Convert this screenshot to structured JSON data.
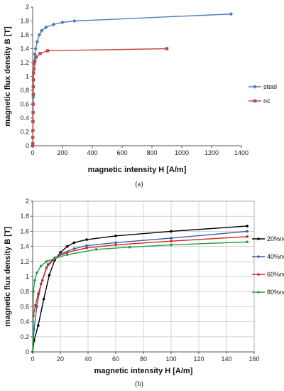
{
  "chart_data": [
    {
      "type": "line",
      "panel_label": "(a)",
      "xlabel": "magnetic intensity H [A/m]",
      "ylabel": "magnetic flux density B [T]",
      "xlim": [
        0,
        1400
      ],
      "ylim": [
        0,
        2
      ],
      "xticks": [
        0,
        200,
        400,
        600,
        800,
        1000,
        1200,
        1400
      ],
      "yticks": [
        0,
        0.2,
        0.4,
        0.6,
        0.8,
        1,
        1.2,
        1.4,
        1.6,
        1.8,
        2
      ],
      "grid": false,
      "legend_position": "right",
      "series": [
        {
          "name": "steel",
          "color": "#4a7ebb",
          "marker": "diamond",
          "x": [
            0,
            2,
            4,
            6,
            8,
            10,
            15,
            20,
            30,
            45,
            60,
            90,
            140,
            200,
            280,
            1330
          ],
          "y": [
            0,
            0.35,
            0.7,
            0.95,
            1.1,
            1.2,
            1.32,
            1.4,
            1.5,
            1.6,
            1.66,
            1.71,
            1.75,
            1.78,
            1.8,
            1.9
          ]
        },
        {
          "name": "nc",
          "color": "#be4b48",
          "marker": "square",
          "x": [
            0,
            1,
            1,
            2,
            2,
            3,
            3,
            4,
            4,
            5,
            6,
            8,
            10,
            15,
            25,
            50,
            100,
            900
          ],
          "y": [
            0,
            0.03,
            0.12,
            0.22,
            0.35,
            0.48,
            0.6,
            0.74,
            0.85,
            0.95,
            1.05,
            1.12,
            1.18,
            1.22,
            1.28,
            1.33,
            1.37,
            1.4
          ]
        }
      ]
    },
    {
      "type": "line",
      "panel_label": "(b)",
      "xlabel": "magnetic intensity H [A/m]",
      "ylabel": "magnetic flux density B [T]",
      "xlim": [
        0,
        160
      ],
      "ylim": [
        0,
        2
      ],
      "xticks": [
        0,
        20,
        40,
        60,
        80,
        100,
        120,
        140,
        160
      ],
      "yticks": [
        0,
        0.2,
        0.4,
        0.6,
        0.8,
        1,
        1.2,
        1.4,
        1.6,
        1.8,
        2
      ],
      "grid": true,
      "legend_position": "right",
      "series": [
        {
          "name": "20%nc",
          "color": "#000000",
          "x": [
            0,
            1,
            4,
            8,
            12,
            16,
            20,
            25,
            30,
            39,
            60,
            100,
            155
          ],
          "y": [
            0,
            0.15,
            0.35,
            0.7,
            1.02,
            1.22,
            1.32,
            1.4,
            1.45,
            1.49,
            1.54,
            1.6,
            1.67
          ]
        },
        {
          "name": "40%nc",
          "color": "#3a5fa8",
          "x": [
            0,
            1,
            3,
            6,
            10,
            15,
            20,
            30,
            39,
            60,
            100,
            155
          ],
          "y": [
            0,
            0.3,
            0.6,
            0.9,
            1.12,
            1.22,
            1.3,
            1.37,
            1.41,
            1.45,
            1.51,
            1.6
          ]
        },
        {
          "name": "60%nc",
          "color": "#e02020",
          "x": [
            0,
            0.5,
            2,
            4,
            7,
            11,
            16,
            25,
            39,
            60,
            100,
            155
          ],
          "y": [
            0,
            0.48,
            0.62,
            0.77,
            0.95,
            1.16,
            1.25,
            1.32,
            1.38,
            1.42,
            1.47,
            1.53
          ]
        },
        {
          "name": "80%nc",
          "color": "#20a040",
          "x": [
            0,
            0.5,
            1.5,
            3,
            6,
            10,
            16,
            25,
            46,
            70,
            100,
            155
          ],
          "y": [
            0,
            0.8,
            0.95,
            1.05,
            1.14,
            1.2,
            1.24,
            1.29,
            1.36,
            1.39,
            1.42,
            1.46
          ]
        }
      ]
    }
  ]
}
